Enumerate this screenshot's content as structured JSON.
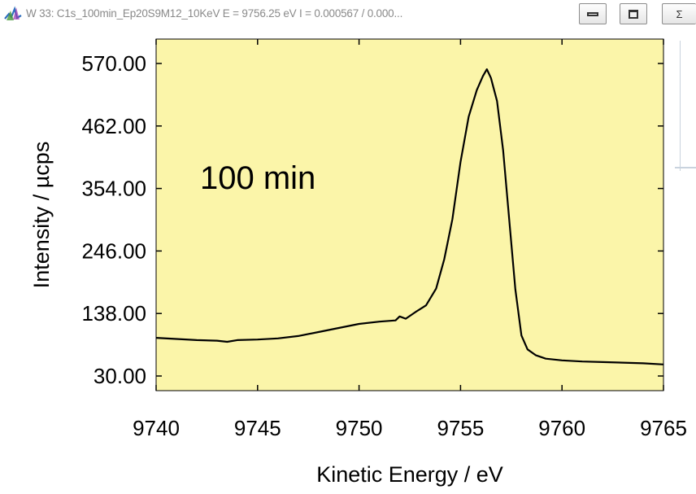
{
  "window": {
    "title": "W 33: C1s_100min_Ep20S9M12_10KeV  E =  9756.25 eV  I =  0.000567 /  0.000...",
    "buttons": {
      "minimize": "minimize",
      "maximize": "maximize",
      "close_glyph": "Σ"
    }
  },
  "colors": {
    "plot_bg": "#fbf5a9",
    "line": "#000000"
  },
  "chart_data": {
    "type": "line",
    "title": "",
    "annotation": "100 min",
    "xlabel": "Kinetic Energy / eV",
    "ylabel": "Intensity / µcps",
    "xlim": [
      9740,
      9765
    ],
    "ylim": [
      30,
      570
    ],
    "x_ticks": [
      9740,
      9745,
      9750,
      9755,
      9760,
      9765
    ],
    "y_ticks": [
      "30.00",
      "138.00",
      "246.00",
      "354.00",
      "462.00",
      "570.00"
    ],
    "series": [
      {
        "x": [
          9740,
          9741,
          9742,
          9743,
          9743.5,
          9744,
          9745,
          9746,
          9747,
          9748,
          9749,
          9750,
          9751,
          9751.8,
          9752,
          9752.3,
          9752.8,
          9753.3,
          9753.8,
          9754.2,
          9754.6,
          9755,
          9755.4,
          9755.8,
          9756.1,
          9756.3,
          9756.5,
          9756.8,
          9757.1,
          9757.4,
          9757.7,
          9758,
          9758.3,
          9758.7,
          9759.2,
          9760,
          9761,
          9762,
          9763,
          9764,
          9765
        ],
        "y": [
          96,
          94,
          92,
          91,
          89,
          92,
          93,
          95,
          99,
          106,
          113,
          120,
          124,
          126,
          133,
          129,
          141,
          152,
          181,
          232,
          301,
          400,
          478,
          524,
          548,
          560,
          545,
          505,
          420,
          300,
          180,
          100,
          76,
          66,
          60,
          57,
          55,
          54,
          53,
          52,
          50
        ]
      }
    ]
  }
}
